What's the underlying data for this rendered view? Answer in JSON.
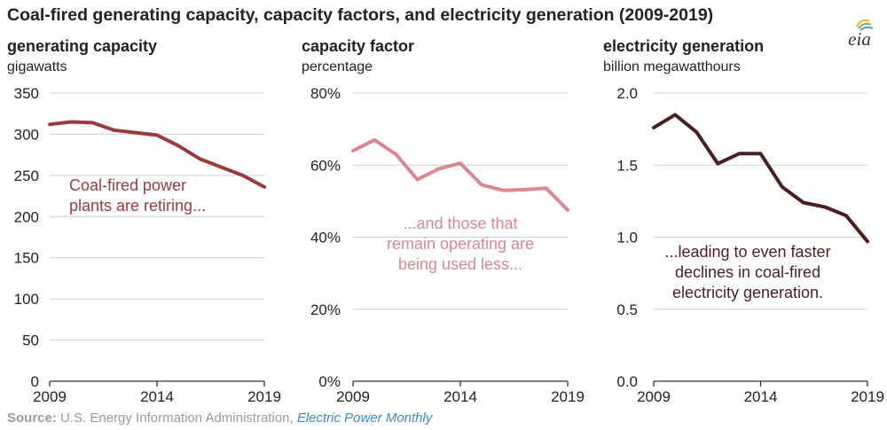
{
  "title": "Coal-fired generating capacity, capacity factors, and electricity generation (2009-2019)",
  "logo": {
    "text": "eia",
    "icon": "eia-sun-logo"
  },
  "source": {
    "label": "Source:",
    "org": " U.S. Energy Information Administration, ",
    "publication": "Electric Power Monthly"
  },
  "colors": {
    "capacity": "#9a3b3f",
    "factor": "#d98791",
    "generation": "#4a1f20",
    "grid": "#d0d0d0",
    "axis": "#333333"
  },
  "chart_data": [
    {
      "type": "line",
      "title": "generating capacity",
      "ylabel": "gigawatts",
      "x": [
        2009,
        2010,
        2011,
        2012,
        2013,
        2014,
        2015,
        2016,
        2017,
        2018,
        2019
      ],
      "xticks": [
        "2009",
        "2014",
        "2019"
      ],
      "ylim": [
        0,
        350
      ],
      "yticks": [
        0,
        50,
        100,
        150,
        200,
        250,
        300,
        350
      ],
      "ytick_labels": [
        "0",
        "50",
        "100",
        "150",
        "200",
        "250",
        "300",
        "350"
      ],
      "series": [
        {
          "values": [
            312,
            315,
            314,
            305,
            302,
            299,
            286,
            270,
            260,
            250,
            236
          ]
        }
      ],
      "annotation": [
        "Coal-fired power",
        "plants are retiring..."
      ],
      "grid": true
    },
    {
      "type": "line",
      "title": "capacity factor",
      "ylabel": "percentage",
      "x": [
        2009,
        2010,
        2011,
        2012,
        2013,
        2014,
        2015,
        2016,
        2017,
        2018,
        2019
      ],
      "xticks": [
        "2009",
        "2014",
        "2019"
      ],
      "ylim": [
        0,
        80
      ],
      "yticks": [
        0,
        20,
        40,
        60,
        80
      ],
      "ytick_labels": [
        "0%",
        "20%",
        "40%",
        "60%",
        "80%"
      ],
      "series": [
        {
          "values": [
            64,
            67,
            63,
            56,
            59,
            60.5,
            54.5,
            53,
            53.2,
            53.6,
            47.5
          ]
        }
      ],
      "annotation": [
        "...and those that",
        "remain operating are",
        "being used less..."
      ],
      "grid": true
    },
    {
      "type": "line",
      "title": "electricity generation",
      "ylabel": "billion megawatthours",
      "x": [
        2009,
        2010,
        2011,
        2012,
        2013,
        2014,
        2015,
        2016,
        2017,
        2018,
        2019
      ],
      "xticks": [
        "2009",
        "2014",
        "2019"
      ],
      "ylim": [
        0,
        2.0
      ],
      "yticks": [
        0,
        0.5,
        1.0,
        1.5,
        2.0
      ],
      "ytick_labels": [
        "0.0",
        "0.5",
        "1.0",
        "1.5",
        "2.0"
      ],
      "series": [
        {
          "values": [
            1.76,
            1.85,
            1.73,
            1.51,
            1.58,
            1.58,
            1.35,
            1.24,
            1.21,
            1.15,
            0.97
          ]
        }
      ],
      "annotation": [
        "...leading to even faster",
        "declines in coal-fired",
        "electricity generation."
      ],
      "grid": true
    }
  ]
}
